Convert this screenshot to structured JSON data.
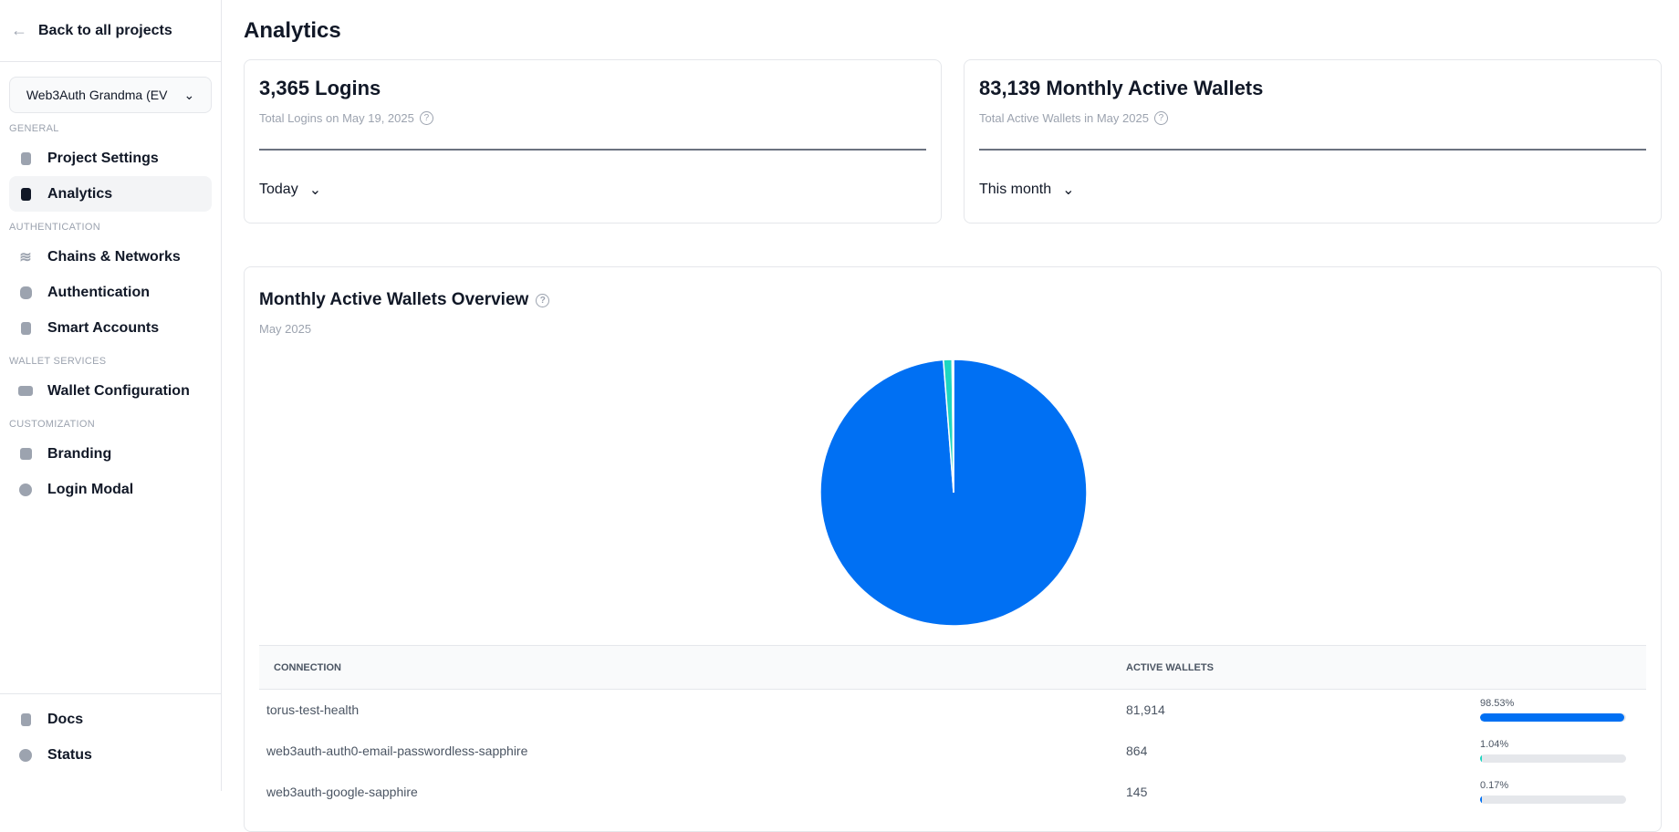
{
  "sidebar": {
    "back": "Back to all projects",
    "project": "Web3Auth Grandma (EV",
    "sections": {
      "general": "GENERAL",
      "auth": "AUTHENTICATION",
      "wallet": "WALLET SERVICES",
      "custom": "CUSTOMIZATION"
    },
    "items": {
      "project_settings": "Project Settings",
      "analytics": "Analytics",
      "chains": "Chains & Networks",
      "authentication": "Authentication",
      "smart_accounts": "Smart Accounts",
      "wallet_config": "Wallet Configuration",
      "branding": "Branding",
      "login_modal": "Login Modal",
      "docs": "Docs",
      "status": "Status"
    }
  },
  "main": {
    "title": "Analytics",
    "logins": {
      "title": "3,365 Logins",
      "sub": "Total Logins on May 19, 2025",
      "range": "Today"
    },
    "maw": {
      "title": "83,139 Monthly Active Wallets",
      "sub": "Total Active Wallets in May 2025",
      "range": "This month"
    },
    "overview": {
      "title": "Monthly Active Wallets Overview",
      "sub": "May 2025"
    },
    "table": {
      "headers": [
        "CONNECTION",
        "ACTIVE WALLETS"
      ],
      "rows": [
        {
          "name": "torus-test-health",
          "value": "81,914",
          "pct": "98.53%",
          "fill": 98.53,
          "color": "#0070f3"
        },
        {
          "name": "web3auth-auth0-email-passwordless-sapphire",
          "value": "864",
          "pct": "1.04%",
          "fill": 1.04,
          "color": "#1dd6c1"
        },
        {
          "name": "web3auth-google-sapphire",
          "value": "145",
          "pct": "0.17%",
          "fill": 0.17,
          "color": "#0070f3"
        }
      ]
    }
  },
  "chart_data": {
    "type": "pie",
    "title": "Monthly Active Wallets Overview",
    "subtitle": "May 2025",
    "categories": [
      "torus-test-health",
      "web3auth-auth0-email-passwordless-sapphire",
      "web3auth-google-sapphire"
    ],
    "values": [
      81914,
      864,
      145
    ],
    "colors": [
      "#0070f3",
      "#1dd6c1",
      "#0070f3"
    ]
  }
}
